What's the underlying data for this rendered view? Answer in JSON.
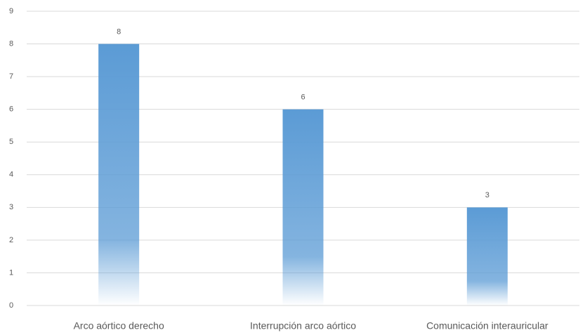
{
  "chart_data": {
    "type": "bar",
    "categories": [
      "Arco aórtico derecho",
      "Interrupción arco aórtico",
      "Comunicación interauricular"
    ],
    "values": [
      8,
      6,
      3
    ],
    "color": "#5b9bd5",
    "ylim": [
      0,
      9
    ],
    "yticks": [
      0,
      1,
      2,
      3,
      4,
      5,
      6,
      7,
      8,
      9
    ],
    "grid": true
  }
}
